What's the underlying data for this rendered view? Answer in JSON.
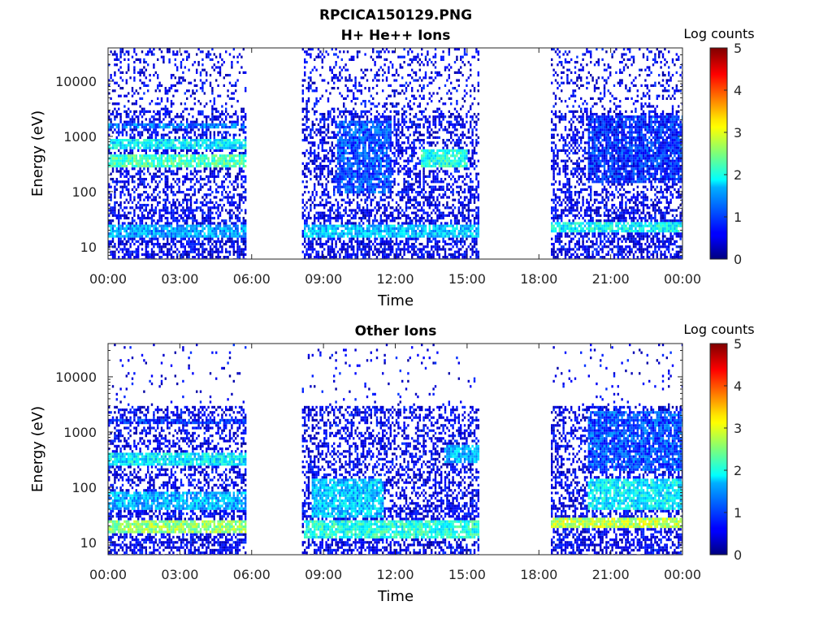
{
  "figure": {
    "title": "RPCICA150129.PNG"
  },
  "chart_data": [
    {
      "type": "heatmap",
      "title": "H+ He++ Ions",
      "xlabel": "Time",
      "ylabel": "Energy (eV)",
      "x_tick_labels": [
        "00:00",
        "03:00",
        "06:00",
        "09:00",
        "12:00",
        "15:00",
        "18:00",
        "21:00",
        "00:00"
      ],
      "x_ticks_hours": [
        0,
        3,
        6,
        9,
        12,
        15,
        18,
        21,
        24
      ],
      "xlim_hours": [
        0,
        24
      ],
      "y_tick_labels": [
        "10",
        "100",
        "1000",
        "10000"
      ],
      "y_ticks": [
        10,
        100,
        1000,
        10000
      ],
      "ylim": [
        6,
        40000
      ],
      "y_scale": "log",
      "colorbar": {
        "label": "Log counts",
        "range": [
          0,
          5
        ],
        "ticks": [
          "0",
          "1",
          "2",
          "3",
          "4",
          "5"
        ],
        "colormap": "jet"
      },
      "data_coverage_hours": [
        [
          0,
          5.75
        ],
        [
          8.1,
          15.5
        ],
        [
          18.5,
          24
        ]
      ],
      "bands": [
        {
          "t": [
            0,
            5.75
          ],
          "e": [
            15,
            28
          ],
          "level": 1.4
        },
        {
          "t": [
            0,
            5.75
          ],
          "e": [
            300,
            500
          ],
          "level": 2.2
        },
        {
          "t": [
            0,
            5.75
          ],
          "e": [
            600,
            1000
          ],
          "level": 1.8
        },
        {
          "t": [
            0,
            5.75
          ],
          "e": [
            1400,
            1800
          ],
          "level": 1.2
        },
        {
          "t": [
            9.5,
            11.8
          ],
          "e": [
            100,
            2000
          ],
          "level": 1.0
        },
        {
          "t": [
            8.1,
            15.5
          ],
          "e": [
            15,
            28
          ],
          "level": 1.6
        },
        {
          "t": [
            13,
            15
          ],
          "e": [
            300,
            600
          ],
          "level": 2.0
        },
        {
          "t": [
            18.5,
            24
          ],
          "e": [
            20,
            30
          ],
          "level": 1.9
        },
        {
          "t": [
            20,
            24
          ],
          "e": [
            150,
            2500
          ],
          "level": 0.8
        }
      ]
    },
    {
      "type": "heatmap",
      "title": "Other Ions",
      "xlabel": "Time",
      "ylabel": "Energy (eV)",
      "x_tick_labels": [
        "00:00",
        "03:00",
        "06:00",
        "09:00",
        "12:00",
        "15:00",
        "18:00",
        "21:00",
        "00:00"
      ],
      "x_ticks_hours": [
        0,
        3,
        6,
        9,
        12,
        15,
        18,
        21,
        24
      ],
      "xlim_hours": [
        0,
        24
      ],
      "y_tick_labels": [
        "10",
        "100",
        "1000",
        "10000"
      ],
      "y_ticks": [
        10,
        100,
        1000,
        10000
      ],
      "ylim": [
        6,
        40000
      ],
      "y_scale": "log",
      "colorbar": {
        "label": "Log counts",
        "range": [
          0,
          5
        ],
        "ticks": [
          "0",
          "1",
          "2",
          "3",
          "4",
          "5"
        ],
        "colormap": "jet"
      },
      "data_coverage_hours": [
        [
          0,
          5.75
        ],
        [
          8.1,
          15.5
        ],
        [
          18.5,
          24
        ]
      ],
      "bands": [
        {
          "t": [
            0,
            5.75
          ],
          "e": [
            15,
            28
          ],
          "level": 2.6
        },
        {
          "t": [
            0,
            5.75
          ],
          "e": [
            40,
            90
          ],
          "level": 1.5
        },
        {
          "t": [
            0,
            5.75
          ],
          "e": [
            250,
            450
          ],
          "level": 1.8
        },
        {
          "t": [
            0,
            5.75
          ],
          "e": [
            1400,
            1800
          ],
          "level": 0.8
        },
        {
          "t": [
            8.1,
            15.5
          ],
          "e": [
            12,
            28
          ],
          "level": 2.0
        },
        {
          "t": [
            8.5,
            11.5
          ],
          "e": [
            30,
            150
          ],
          "level": 1.6
        },
        {
          "t": [
            14,
            15.5
          ],
          "e": [
            300,
            600
          ],
          "level": 1.5
        },
        {
          "t": [
            18.5,
            24
          ],
          "e": [
            20,
            30
          ],
          "level": 2.8
        },
        {
          "t": [
            20,
            24
          ],
          "e": [
            40,
            150
          ],
          "level": 1.8
        },
        {
          "t": [
            20,
            24
          ],
          "e": [
            200,
            2500
          ],
          "level": 1.0
        }
      ]
    }
  ]
}
